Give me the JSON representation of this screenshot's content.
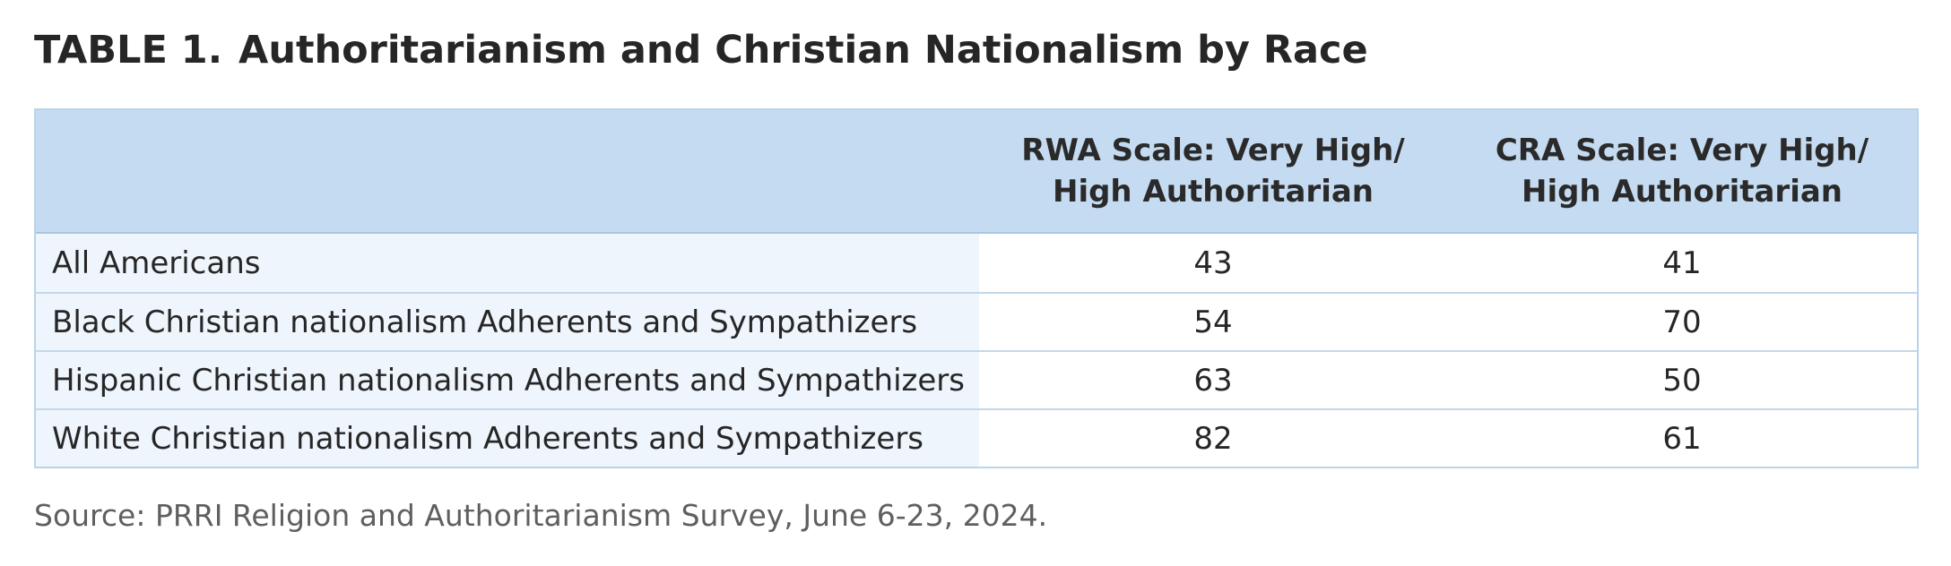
{
  "title": {
    "label": "TABLE 1.",
    "text": "Authoritarianism and Christian Nationalism by Race"
  },
  "table": {
    "columns": [
      {
        "line1": "RWA Scale: Very High/",
        "line2": "High Authoritarian"
      },
      {
        "line1": "CRA Scale: Very High/",
        "line2": "High Authoritarian"
      }
    ],
    "rows": [
      {
        "label": "All Americans",
        "rwa": "43",
        "cra": "41"
      },
      {
        "label": "Black Christian nationalism Adherents and Sympathizers",
        "rwa": "54",
        "cra": "70"
      },
      {
        "label": "Hispanic Christian nationalism Adherents and Sympathizers",
        "rwa": "63",
        "cra": "50"
      },
      {
        "label": "White Christian nationalism Adherents and Sympathizers",
        "rwa": "82",
        "cra": "61"
      }
    ]
  },
  "source": "Source: PRRI Religion and Authoritarianism Survey, June 6-23, 2024.",
  "colors": {
    "header_bg": "#c5dbf1",
    "label_col_bg": "#eff5fc",
    "border": "#b9d3e8"
  }
}
